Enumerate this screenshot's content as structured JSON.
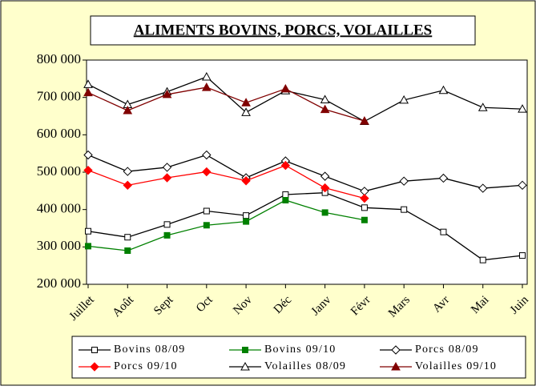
{
  "chart_data": {
    "type": "line",
    "title": "ALIMENTS BOVINS, PORCS, VOLAILLES",
    "categories": [
      "Juillet",
      "Août",
      "Sept",
      "Oct",
      "Nov",
      "Déc",
      "Janv",
      "Févr",
      "Mars",
      "Avr",
      "Mai",
      "Juin"
    ],
    "series": [
      {
        "name": "Bovins 08/09",
        "color": "#000000",
        "marker": "square",
        "filled": false,
        "values": [
          342000,
          326000,
          360000,
          396000,
          384000,
          440000,
          445000,
          405000,
          400000,
          340000,
          265000,
          277000
        ]
      },
      {
        "name": "Bovins 09/10",
        "color": "#008000",
        "marker": "square",
        "filled": true,
        "values": [
          302000,
          290000,
          331000,
          358000,
          368000,
          425000,
          392000,
          372000,
          null,
          null,
          null,
          null
        ]
      },
      {
        "name": "Porcs 08/09",
        "color": "#000000",
        "marker": "diamond",
        "filled": false,
        "values": [
          546000,
          502000,
          513000,
          546000,
          485000,
          530000,
          489000,
          449000,
          476000,
          484000,
          457000,
          465000
        ]
      },
      {
        "name": "Porcs 09/10",
        "color": "#ff0000",
        "marker": "diamond",
        "filled": true,
        "values": [
          505000,
          465000,
          485000,
          501000,
          477000,
          518000,
          458000,
          430000,
          null,
          null,
          null,
          null
        ]
      },
      {
        "name": "Volailles 08/09",
        "color": "#000000",
        "marker": "triangle",
        "filled": false,
        "values": [
          735000,
          681000,
          715000,
          755000,
          660000,
          718000,
          694000,
          636000,
          693000,
          719000,
          673000,
          669000
        ]
      },
      {
        "name": "Volailles 09/10",
        "color": "#800000",
        "marker": "triangle",
        "filled": true,
        "values": [
          713000,
          665000,
          708000,
          727000,
          686000,
          723000,
          668000,
          637000,
          null,
          null,
          null,
          null
        ]
      }
    ],
    "ylim": [
      200000,
      800000
    ],
    "yticks": [
      {
        "value": 200000,
        "label": "200 000"
      },
      {
        "value": 300000,
        "label": "300 000"
      },
      {
        "value": 400000,
        "label": "400 000"
      },
      {
        "value": 500000,
        "label": "500 000"
      },
      {
        "value": 600000,
        "label": "600 000"
      },
      {
        "value": 700000,
        "label": "700 000"
      },
      {
        "value": 800000,
        "label": "800 000"
      }
    ],
    "grid": false,
    "legend": "bottom"
  }
}
